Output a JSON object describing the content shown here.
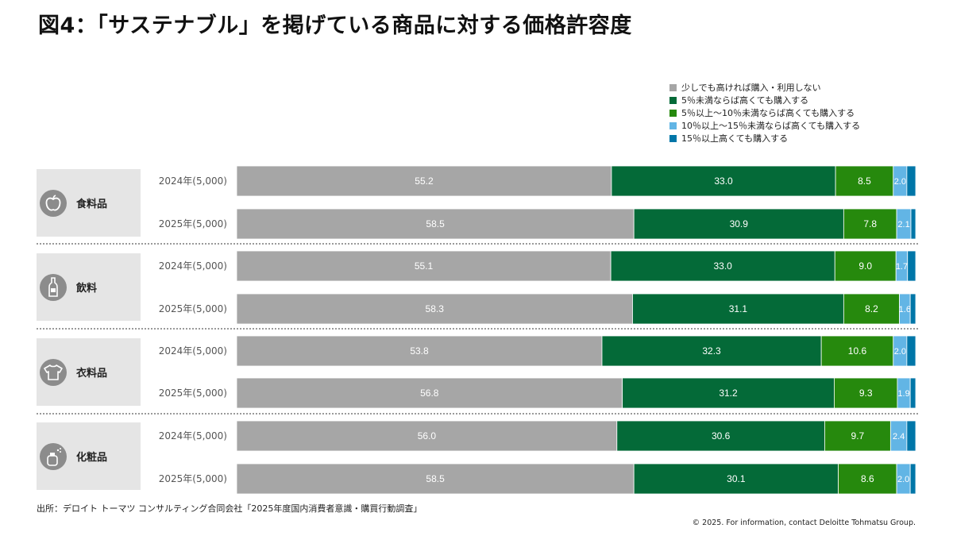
{
  "title": "図4：「サステナブル」を掲げている商品に対する価格許容度",
  "source": "出所：デロイト トーマツ コンサルティング合同会社「2025年度国内消費者意識・購買行動調査」",
  "copyright": "© 2025. For information, contact Deloitte Tohmatsu Group.",
  "colors": {
    "s1": "#a6a6a6",
    "s2": "#046a38",
    "s3": "#26890d",
    "s4": "#62b5e5",
    "s5": "#0076a8",
    "icon_bg": "#8c8c8c",
    "group_bg": "#e5e5e5"
  },
  "groups": [
    {
      "name": "食料品",
      "icon": "apple-icon"
    },
    {
      "name": "飲料",
      "icon": "bottle-icon"
    },
    {
      "name": "衣料品",
      "icon": "shirt-icon"
    },
    {
      "name": "化粧品",
      "icon": "spray-bottle-icon"
    }
  ],
  "chart_data": {
    "type": "bar",
    "orientation": "horizontal",
    "stacked": true,
    "xlim": [
      0,
      100
    ],
    "legend_position": "top-right",
    "categories": [
      "食料品 2024年(5,000)",
      "食料品 2025年(5,000)",
      "飲料 2024年(5,000)",
      "飲料 2025年(5,000)",
      "衣料品 2024年(5,000)",
      "衣料品 2025年(5,000)",
      "化粧品 2024年(5,000)",
      "化粧品 2025年(5,000)"
    ],
    "row_labels": [
      "2024年(5,000)",
      "2025年(5,000)",
      "2024年(5,000)",
      "2025年(5,000)",
      "2024年(5,000)",
      "2025年(5,000)",
      "2024年(5,000)",
      "2025年(5,000)"
    ],
    "series": [
      {
        "name": "少しでも高ければ購入・利用しない",
        "values": [
          55.2,
          58.5,
          55.1,
          58.3,
          53.8,
          56.8,
          56.0,
          58.5
        ]
      },
      {
        "name": "5％未満ならば高くても購入する",
        "values": [
          33.0,
          30.9,
          33.0,
          31.1,
          32.3,
          31.2,
          30.6,
          30.1
        ]
      },
      {
        "name": "5％以上～10％未満ならば高くても購入する",
        "values": [
          8.5,
          7.8,
          9.0,
          8.2,
          10.6,
          9.3,
          9.7,
          8.6
        ]
      },
      {
        "name": "10％以上～15％未満ならば高くても購入する",
        "values": [
          2.0,
          2.1,
          1.7,
          1.6,
          2.0,
          1.9,
          2.4,
          2.0
        ]
      },
      {
        "name": "15％以上高くても購入する",
        "values": [
          1.3,
          0.7,
          1.2,
          0.8,
          1.3,
          0.8,
          1.3,
          0.8
        ]
      }
    ],
    "data_labels_shown_for_series": [
      0,
      1,
      2,
      3
    ]
  }
}
